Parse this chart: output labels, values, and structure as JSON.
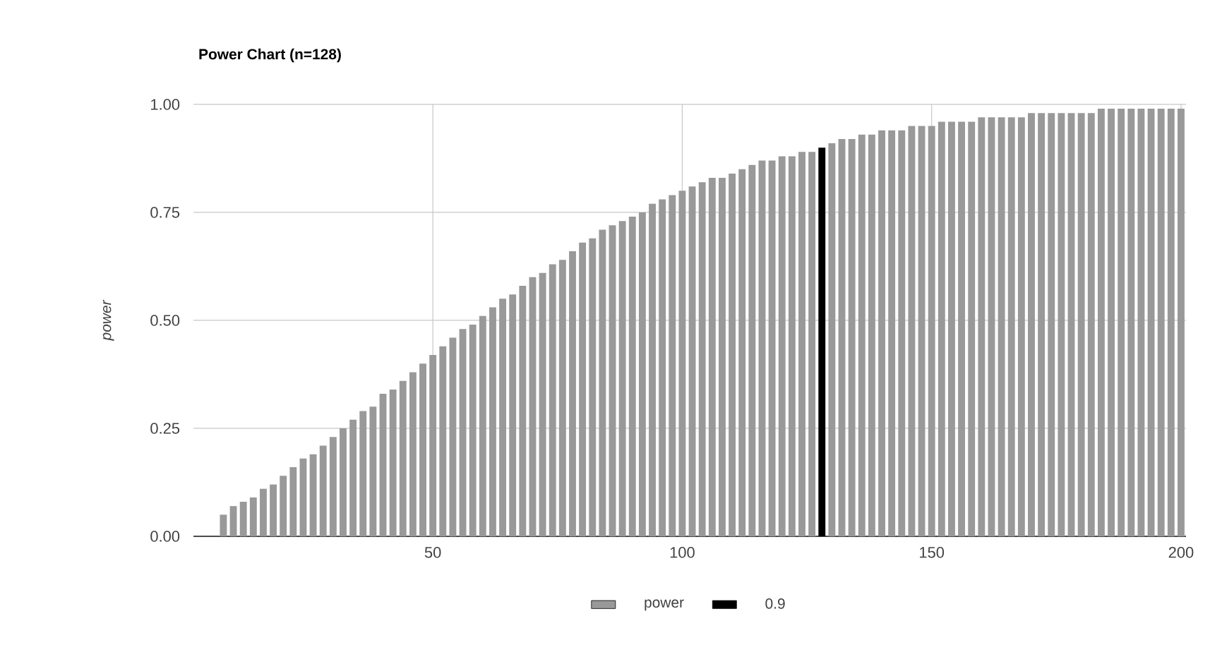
{
  "chart_data": {
    "type": "bar",
    "title": "Power Chart (n=128)",
    "ylabel": "power",
    "xlim": [
      2,
      201
    ],
    "xticks": [
      50,
      100,
      150,
      200
    ],
    "ylim": [
      0,
      1
    ],
    "yticks": [
      {
        "value": 0,
        "label": "0.00"
      },
      {
        "value": 0.25,
        "label": "0.25"
      },
      {
        "value": 0.5,
        "label": "0.50"
      },
      {
        "value": 0.75,
        "label": "0.75"
      },
      {
        "value": 1,
        "label": "1.00"
      }
    ],
    "grid": true,
    "legend": "bottom",
    "series": [
      {
        "name": "power",
        "color": "#999999",
        "x": [
          8,
          10,
          12,
          14,
          16,
          18,
          20,
          22,
          24,
          26,
          28,
          30,
          32,
          34,
          36,
          38,
          40,
          42,
          44,
          46,
          48,
          50,
          52,
          54,
          56,
          58,
          60,
          62,
          64,
          66,
          68,
          70,
          72,
          74,
          76,
          78,
          80,
          82,
          84,
          86,
          88,
          90,
          92,
          94,
          96,
          98,
          100,
          102,
          104,
          106,
          108,
          110,
          112,
          114,
          116,
          118,
          120,
          122,
          124,
          126,
          130,
          132,
          134,
          136,
          138,
          140,
          142,
          144,
          146,
          148,
          150,
          152,
          154,
          156,
          158,
          160,
          162,
          164,
          166,
          168,
          170,
          172,
          174,
          176,
          178,
          180,
          182,
          184,
          186,
          188,
          190,
          192,
          194,
          196,
          198,
          200
        ],
        "values": [
          0.05,
          0.07,
          0.08,
          0.09,
          0.11,
          0.12,
          0.14,
          0.16,
          0.18,
          0.19,
          0.21,
          0.23,
          0.25,
          0.27,
          0.29,
          0.3,
          0.33,
          0.34,
          0.36,
          0.38,
          0.4,
          0.42,
          0.44,
          0.46,
          0.48,
          0.49,
          0.51,
          0.53,
          0.55,
          0.56,
          0.58,
          0.6,
          0.61,
          0.63,
          0.64,
          0.66,
          0.68,
          0.69,
          0.71,
          0.72,
          0.73,
          0.74,
          0.75,
          0.77,
          0.78,
          0.79,
          0.8,
          0.81,
          0.82,
          0.83,
          0.83,
          0.84,
          0.85,
          0.86,
          0.87,
          0.87,
          0.88,
          0.88,
          0.89,
          0.89,
          0.91,
          0.92,
          0.92,
          0.93,
          0.93,
          0.94,
          0.94,
          0.94,
          0.95,
          0.95,
          0.95,
          0.96,
          0.96,
          0.96,
          0.96,
          0.97,
          0.97,
          0.97,
          0.97,
          0.97,
          0.98,
          0.98,
          0.98,
          0.98,
          0.98,
          0.98,
          0.98,
          0.99,
          0.99,
          0.99,
          0.99,
          0.99,
          0.99,
          0.99,
          0.99,
          0.99
        ]
      },
      {
        "name": "0.9",
        "color": "#000000",
        "x": [
          128
        ],
        "values": [
          0.9
        ]
      }
    ]
  }
}
